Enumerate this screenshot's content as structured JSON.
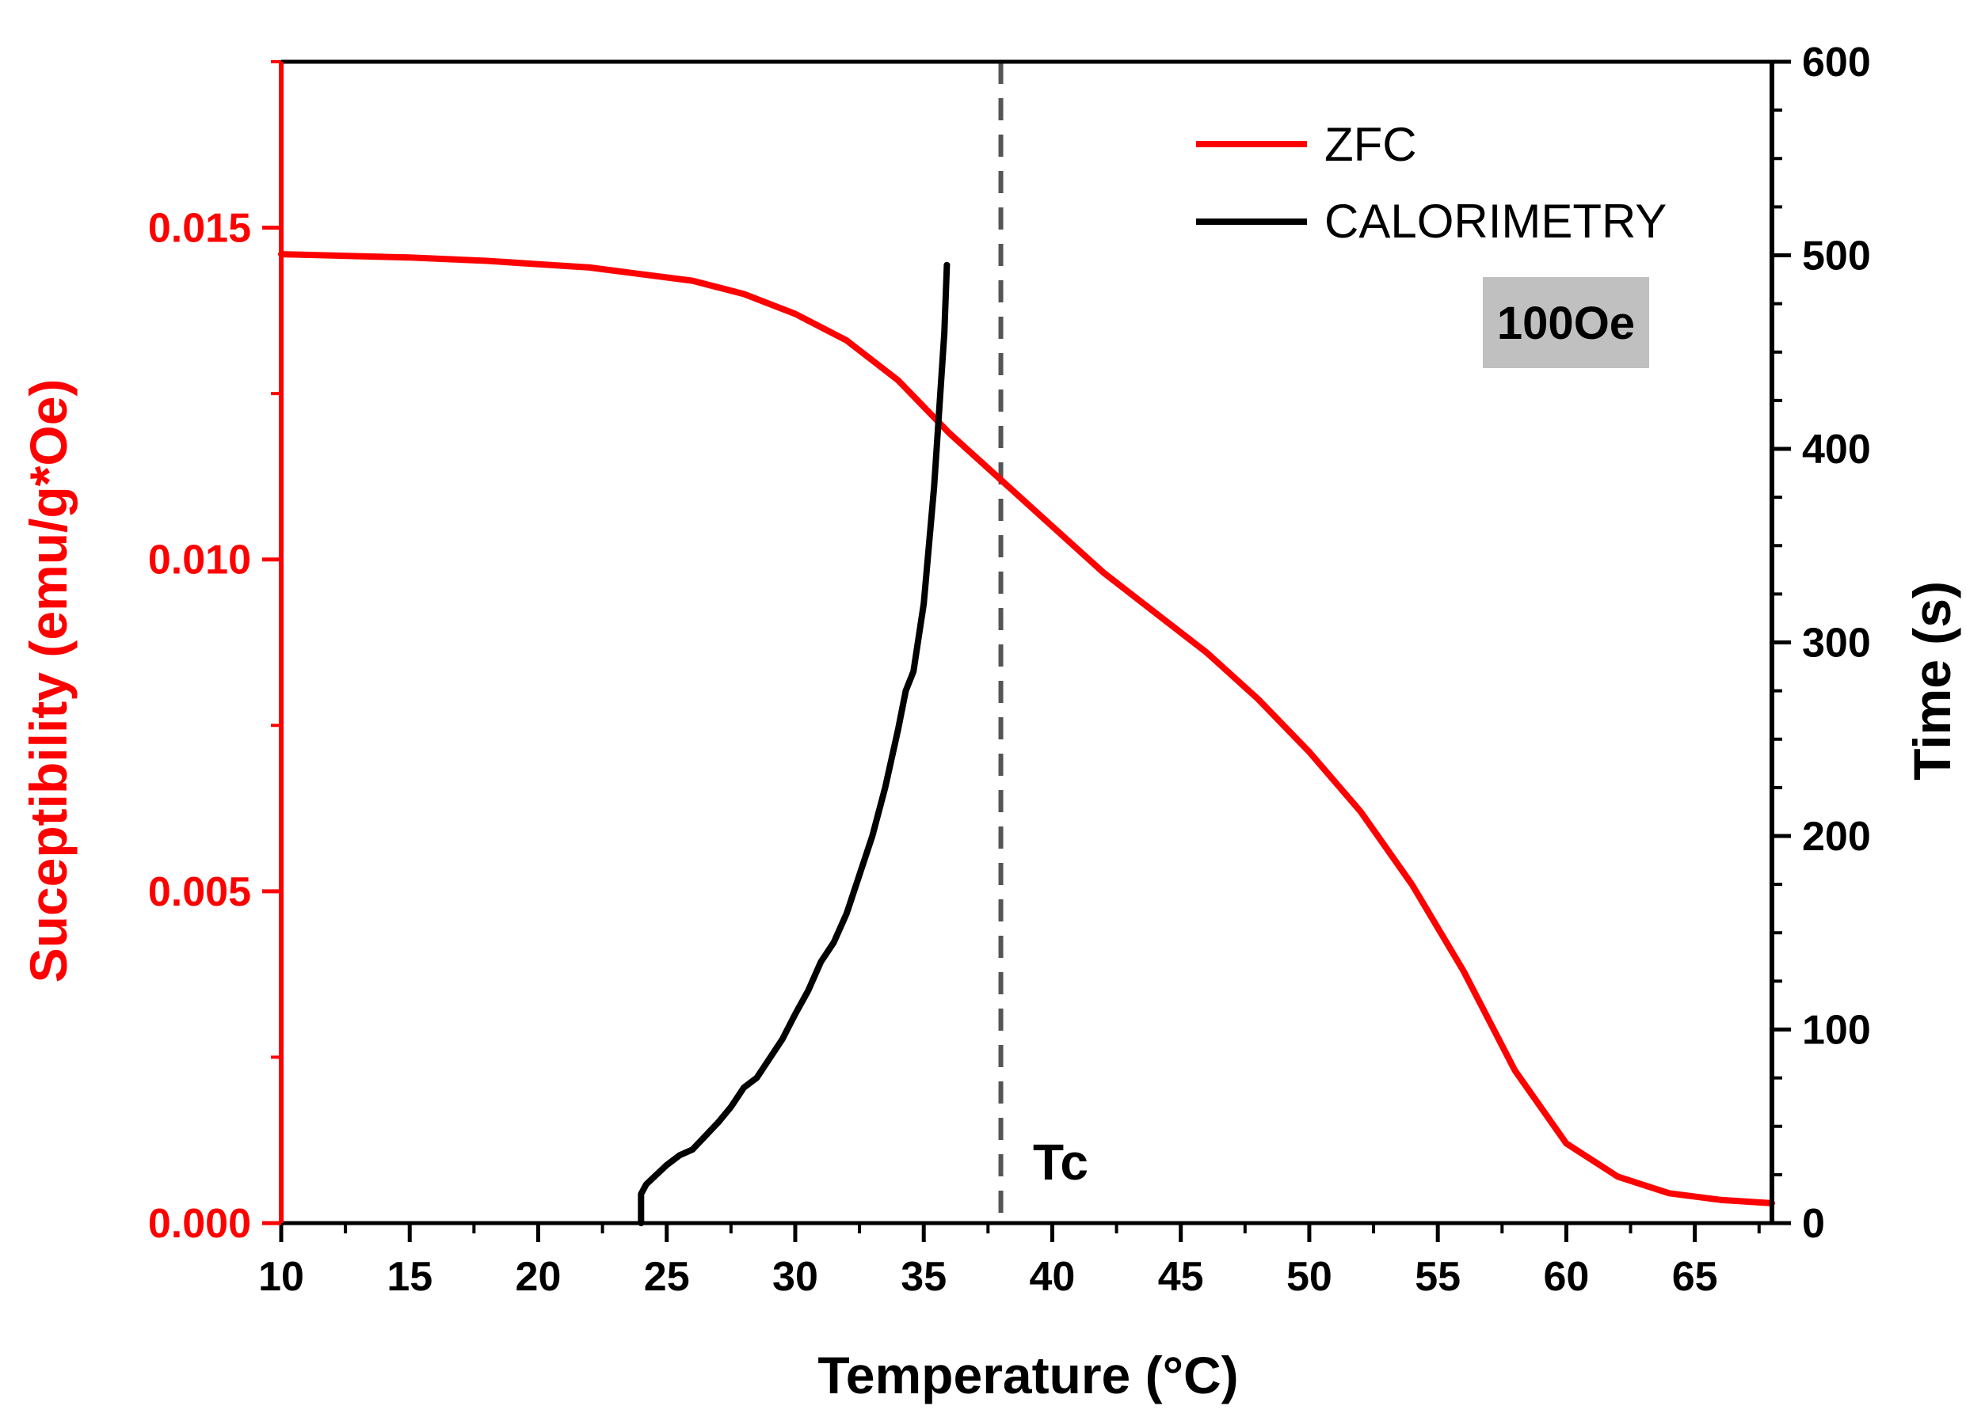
{
  "chart_data": {
    "type": "line",
    "title": "",
    "xlabel": "Temperature (°C)",
    "ylabel_left": "Suceptibility (emu/g*Oe)",
    "ylabel_right": "Time (s)",
    "xlim": [
      10,
      68
    ],
    "ylim_left": [
      0,
      0.0175
    ],
    "ylim_right": [
      0,
      600
    ],
    "x_ticks": [
      10,
      15,
      20,
      25,
      30,
      35,
      40,
      45,
      50,
      55,
      60,
      65
    ],
    "y_left_ticks": [
      {
        "value": 0.0,
        "label": "0.000"
      },
      {
        "value": 0.005,
        "label": "0.005"
      },
      {
        "value": 0.01,
        "label": "0.010"
      },
      {
        "value": 0.015,
        "label": "0.015"
      }
    ],
    "y_right_ticks": [
      0,
      100,
      200,
      300,
      400,
      500,
      600
    ],
    "legend": [
      "ZFC",
      "CALORIMETRY"
    ],
    "legend_position": "top-right",
    "annotations": {
      "box_label": "100Oe",
      "tc_label": "Tc",
      "tc_x": 38
    },
    "colors": {
      "zfc": "#ff0000",
      "calorimetry": "#000000",
      "left_axis": "#ff0000",
      "right_axis": "#000000",
      "tc_line": "#555555",
      "badge": "#c0c0c0"
    },
    "series": [
      {
        "name": "ZFC",
        "axis": "left",
        "x": [
          10,
          12,
          15,
          18,
          20,
          22,
          24,
          26,
          28,
          30,
          32,
          34,
          36,
          38,
          40,
          42,
          44,
          46,
          48,
          50,
          52,
          54,
          56,
          58,
          60,
          62,
          64,
          66,
          68
        ],
        "y": [
          0.0146,
          0.01458,
          0.01455,
          0.0145,
          0.01445,
          0.0144,
          0.0143,
          0.0142,
          0.014,
          0.0137,
          0.0133,
          0.0127,
          0.0119,
          0.0112,
          0.0105,
          0.0098,
          0.0092,
          0.0086,
          0.0079,
          0.0071,
          0.0062,
          0.0051,
          0.0038,
          0.0023,
          0.0012,
          0.0007,
          0.00045,
          0.00035,
          0.0003
        ]
      },
      {
        "name": "CALORIMETRY",
        "axis": "right",
        "x": [
          24,
          24,
          24.2,
          24.6,
          25,
          25.5,
          26,
          26.5,
          27,
          27.5,
          28,
          28.5,
          29,
          29.5,
          30,
          30.5,
          31,
          31.5,
          32,
          32.5,
          33,
          33.5,
          34,
          34.3,
          34.6,
          35,
          35.2,
          35.4,
          35.6,
          35.8,
          35.9
        ],
        "y": [
          0,
          15,
          20,
          25,
          30,
          35,
          38,
          45,
          52,
          60,
          70,
          75,
          85,
          95,
          108,
          120,
          135,
          145,
          160,
          180,
          200,
          225,
          255,
          275,
          285,
          320,
          350,
          380,
          420,
          460,
          495
        ]
      }
    ]
  }
}
